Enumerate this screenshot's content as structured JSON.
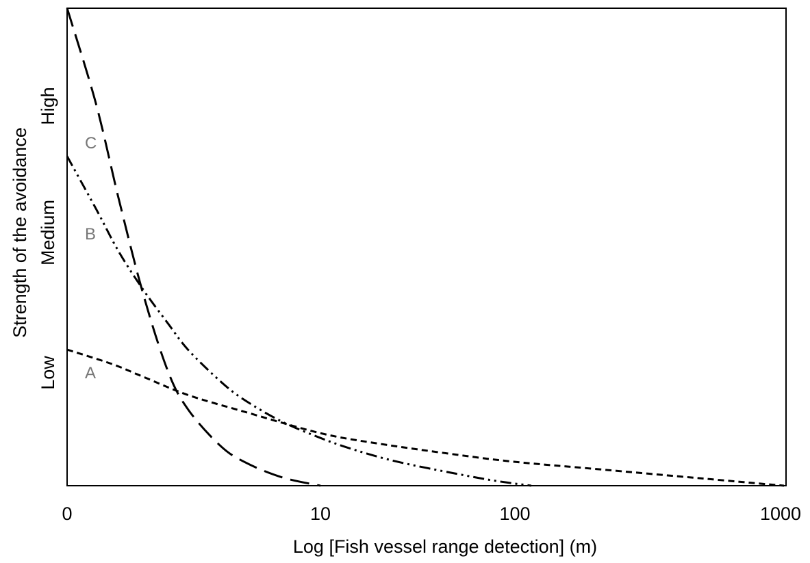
{
  "chart_data": {
    "type": "line",
    "xlabel": "Log [Fish vessel range detection] (m)",
    "ylabel": "Strength of the avoidance",
    "x_scale": "log",
    "x_ticks": [
      "0",
      "10",
      "100",
      "1000"
    ],
    "y_ticks": [
      "Low",
      "Medium",
      "High"
    ],
    "xlim": [
      1,
      1000
    ],
    "ylim": [
      0,
      1
    ],
    "grid": false,
    "legend": "none",
    "series": [
      {
        "name": "A",
        "line_style": "short-dash",
        "color": "#000000",
        "x": [
          1,
          1.5,
          2,
          3,
          5,
          10,
          20,
          50,
          100,
          200,
          500,
          1000
        ],
        "y": [
          0.285,
          0.255,
          0.228,
          0.19,
          0.155,
          0.11,
          0.088,
          0.065,
          0.05,
          0.035,
          0.015,
          0.0
        ]
      },
      {
        "name": "B",
        "line_style": "dash-dot-dot",
        "color": "#000000",
        "x": [
          1,
          1.3,
          1.6,
          2,
          2.5,
          3,
          4,
          5,
          7,
          10,
          15,
          25,
          50,
          80,
          115
        ],
        "y": [
          0.69,
          0.58,
          0.49,
          0.41,
          0.34,
          0.285,
          0.22,
          0.18,
          0.135,
          0.1,
          0.075,
          0.05,
          0.025,
          0.01,
          0.0
        ]
      },
      {
        "name": "C",
        "line_style": "long-dash",
        "color": "#000000",
        "x": [
          1,
          1.3,
          1.6,
          2,
          2.5,
          3,
          4,
          5,
          7,
          10
        ],
        "y": [
          1.0,
          0.8,
          0.6,
          0.4,
          0.24,
          0.16,
          0.085,
          0.05,
          0.018,
          0.0
        ]
      }
    ]
  },
  "series_labels": {
    "A": "A",
    "B": "B",
    "C": "C"
  },
  "colors": {
    "axis": "#000000",
    "curve": "#000000",
    "curve_label": "#777777",
    "background": "#ffffff"
  }
}
